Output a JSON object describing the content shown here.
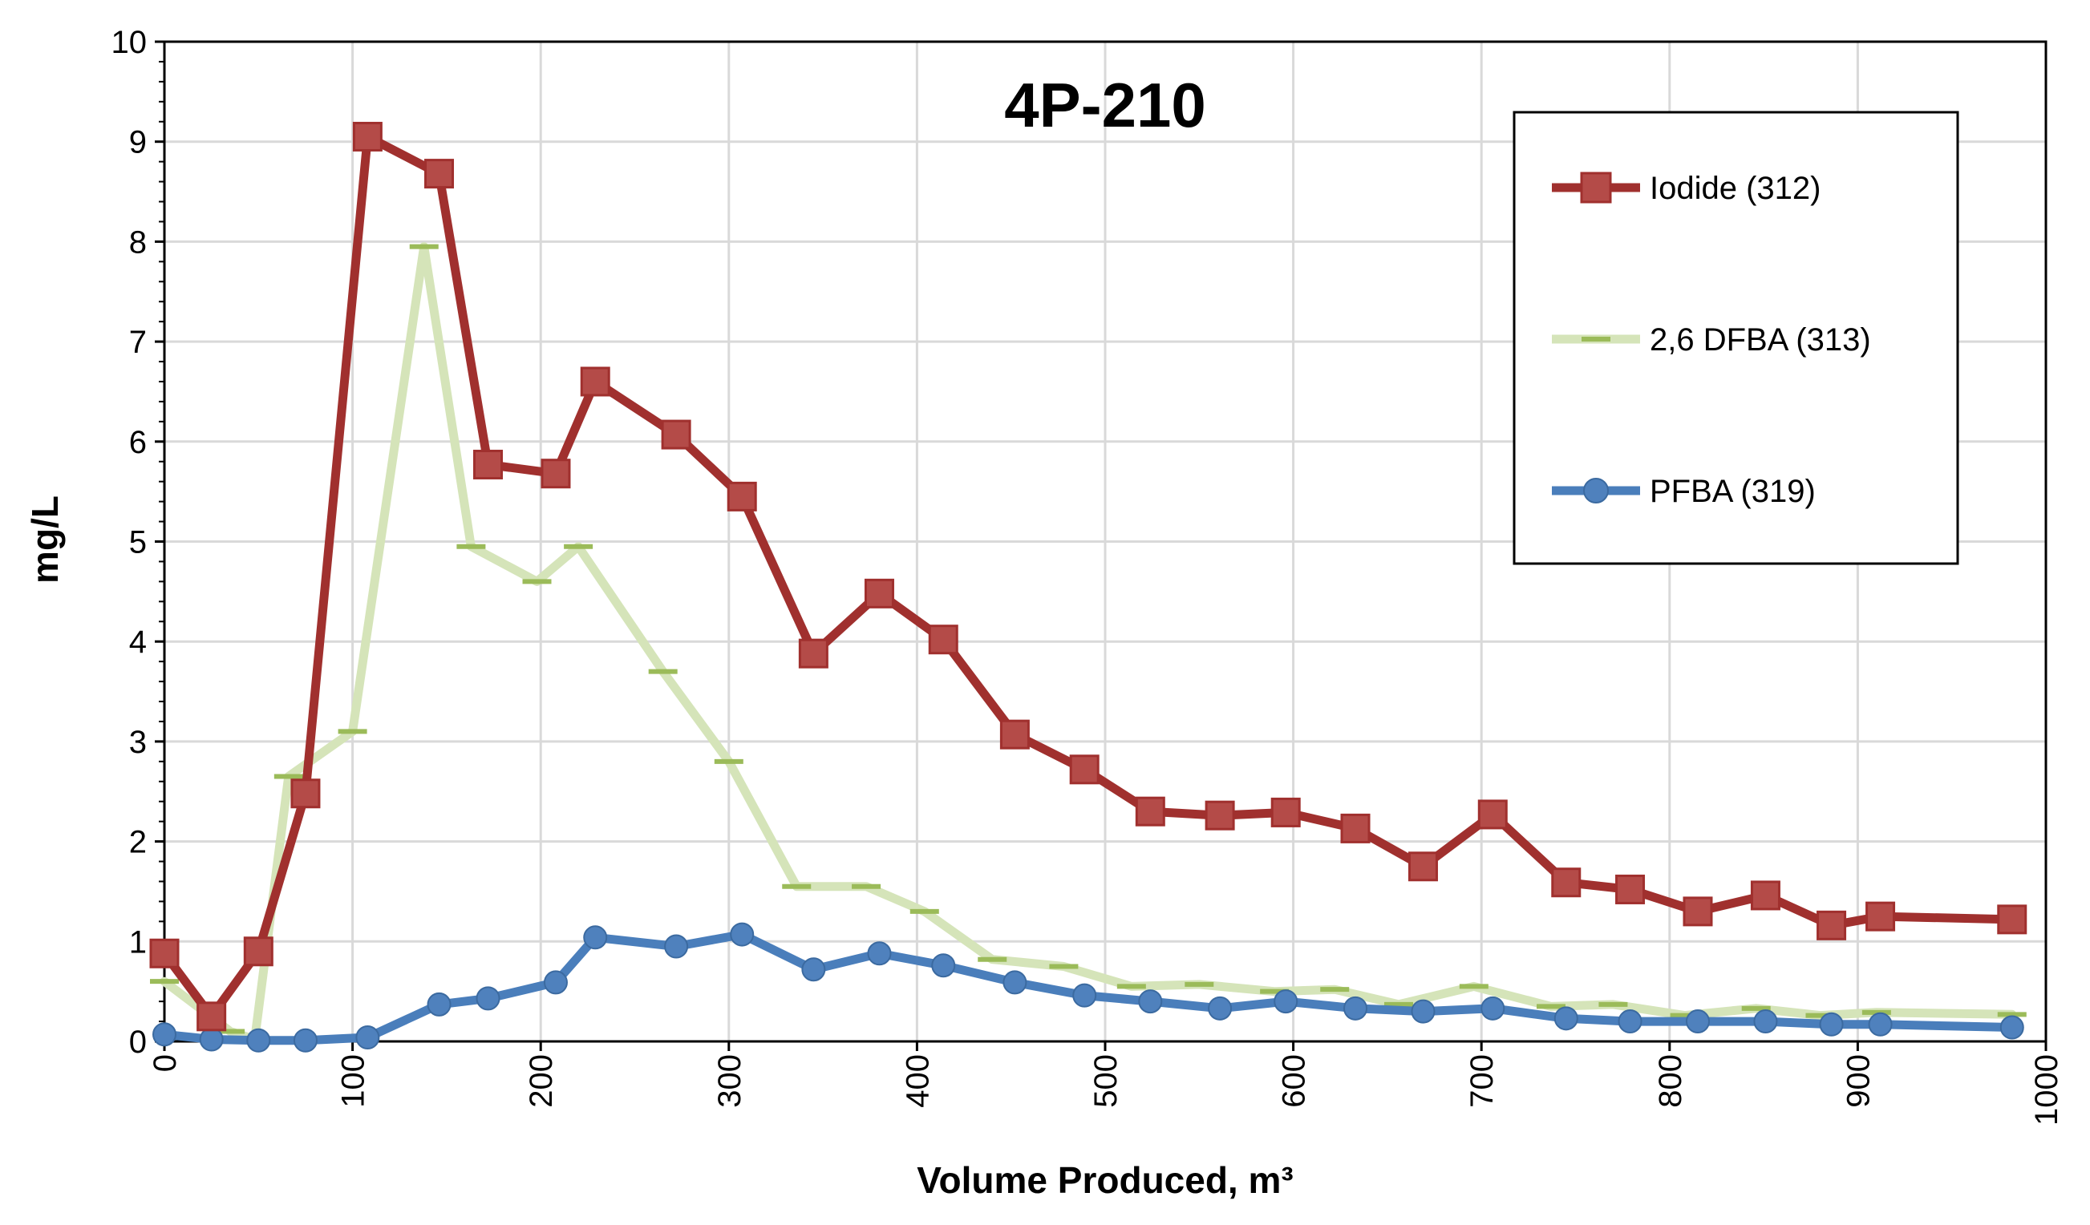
{
  "chart_data": {
    "type": "line",
    "title": "4P-210",
    "xlabel": "Volume Produced, m³",
    "ylabel": "mg/L",
    "xlim": [
      0,
      1000
    ],
    "ylim": [
      0,
      10
    ],
    "x_ticks": [
      "0",
      "100",
      "200",
      "300",
      "400",
      "500",
      "600",
      "700",
      "800",
      "900",
      "1000"
    ],
    "y_ticks": [
      "0",
      "1",
      "2",
      "3",
      "4",
      "5",
      "6",
      "7",
      "8",
      "9",
      "10"
    ],
    "grid": true,
    "legend_position": "top-right",
    "series": [
      {
        "name": "Iodide (312)",
        "color": "#A0302E",
        "marker": "square",
        "x": [
          0,
          25,
          50,
          75,
          108,
          146,
          172,
          208,
          229,
          272,
          307,
          345,
          380,
          414,
          452,
          489,
          524,
          561,
          596,
          633,
          669,
          706,
          745,
          779,
          815,
          851,
          886,
          912,
          982
        ],
        "y": [
          0.88,
          0.25,
          0.9,
          2.48,
          9.05,
          8.68,
          5.77,
          5.68,
          6.6,
          6.07,
          5.45,
          3.88,
          4.48,
          4.02,
          3.07,
          2.72,
          2.3,
          2.26,
          2.29,
          2.13,
          1.75,
          2.27,
          1.59,
          1.52,
          1.3,
          1.46,
          1.16,
          1.25,
          1.22
        ]
      },
      {
        "name": "2,6 DFBA (313)",
        "color": "#D5E4B9",
        "marker": "dash",
        "x": [
          0,
          35,
          48,
          66,
          100,
          138,
          163,
          198,
          220,
          265,
          300,
          336,
          373,
          404,
          440,
          478,
          514,
          550,
          590,
          622,
          656,
          696,
          737,
          770,
          808,
          846,
          880,
          910,
          982
        ],
        "y": [
          0.6,
          0.1,
          0.02,
          2.65,
          3.1,
          7.95,
          4.95,
          4.6,
          4.95,
          3.7,
          2.8,
          1.55,
          1.55,
          1.3,
          0.82,
          0.75,
          0.55,
          0.57,
          0.5,
          0.52,
          0.37,
          0.55,
          0.35,
          0.37,
          0.26,
          0.33,
          0.26,
          0.29,
          0.27
        ]
      },
      {
        "name": "PFBA (319)",
        "color": "#4A7EBB",
        "marker": "circle",
        "x": [
          0,
          25,
          50,
          75,
          108,
          146,
          172,
          208,
          229,
          272,
          307,
          345,
          380,
          414,
          452,
          489,
          524,
          561,
          596,
          633,
          669,
          706,
          745,
          779,
          815,
          851,
          886,
          912,
          982
        ],
        "y": [
          0.07,
          0.02,
          0.01,
          0.01,
          0.04,
          0.37,
          0.43,
          0.59,
          1.04,
          0.95,
          1.07,
          0.72,
          0.88,
          0.76,
          0.59,
          0.46,
          0.4,
          0.33,
          0.4,
          0.33,
          0.3,
          0.33,
          0.23,
          0.2,
          0.2,
          0.2,
          0.17,
          0.17,
          0.14
        ]
      }
    ]
  }
}
